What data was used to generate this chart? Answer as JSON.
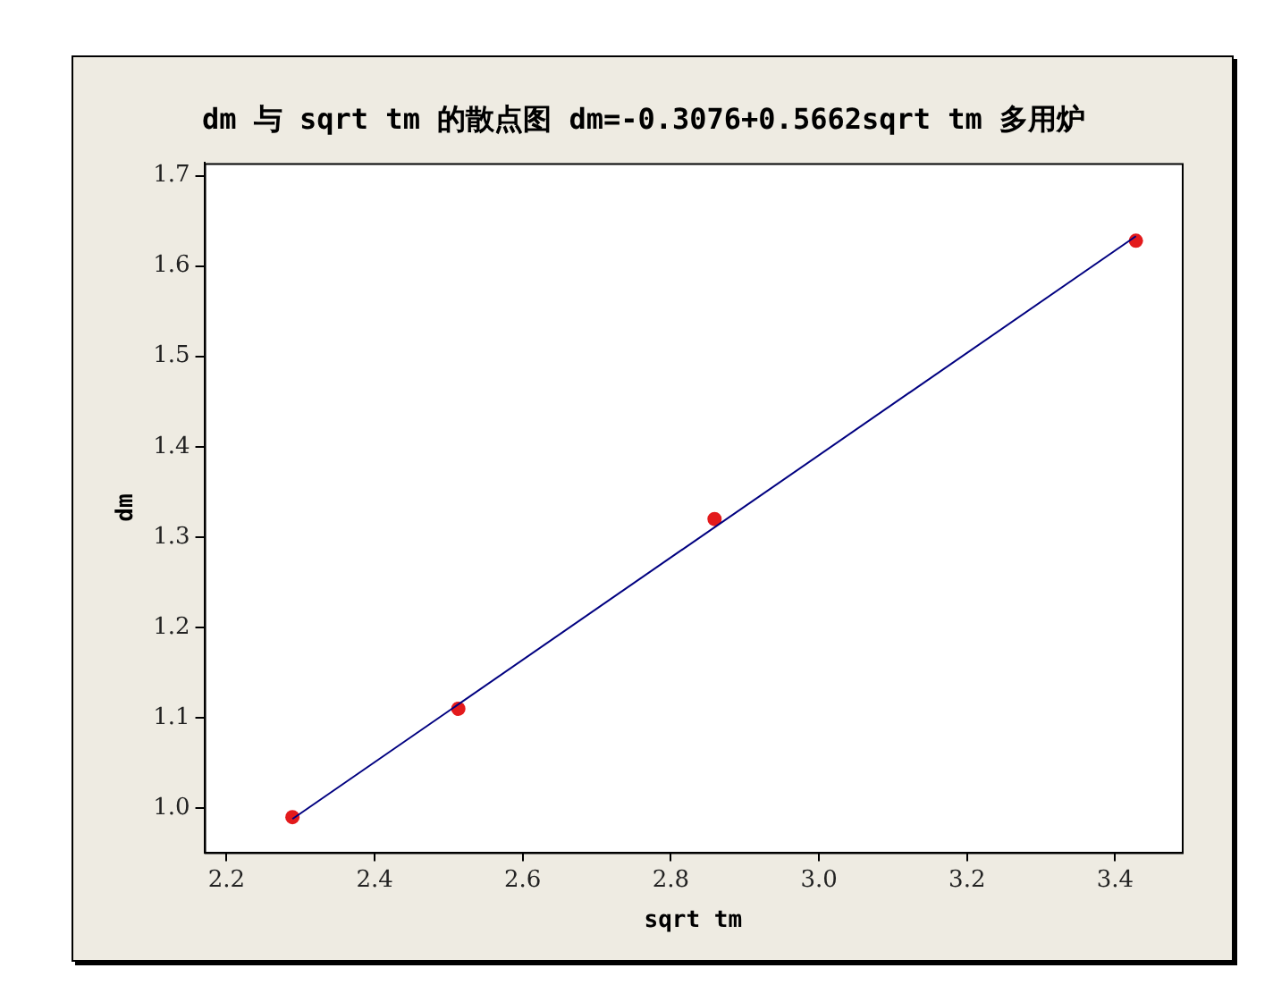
{
  "chart_data": {
    "type": "scatter",
    "title": "dm 与 sqrt tm 的散点图 dm=-0.3076+0.5662sqrt tm 多用炉",
    "xlabel": "sqrt tm",
    "ylabel": "dm",
    "series": [
      {
        "type": "scatter",
        "color": "#e31a1c",
        "marker": "circle",
        "x": [
          2.289,
          2.513,
          2.859,
          3.428
        ],
        "values": [
          0.99,
          1.11,
          1.32,
          1.628
        ]
      },
      {
        "type": "line",
        "color": "#000080",
        "marker": "none",
        "line_style": "solid",
        "x": [
          2.289,
          3.428
        ],
        "values": [
          0.988,
          1.633
        ]
      }
    ],
    "xlim": [
      2.17,
      3.49
    ],
    "xticks": [
      2.2,
      2.4,
      2.6,
      2.8,
      {
        "value": 3,
        "label": "3.0"
      },
      3.2,
      3.4
    ],
    "ylim": [
      0.951,
      1.714
    ],
    "yticks": [
      {
        "value": 1,
        "label": "1.0"
      },
      1.1,
      1.2,
      1.3,
      1.4,
      1.5,
      1.6,
      1.7
    ],
    "grid": false,
    "legend": false
  }
}
